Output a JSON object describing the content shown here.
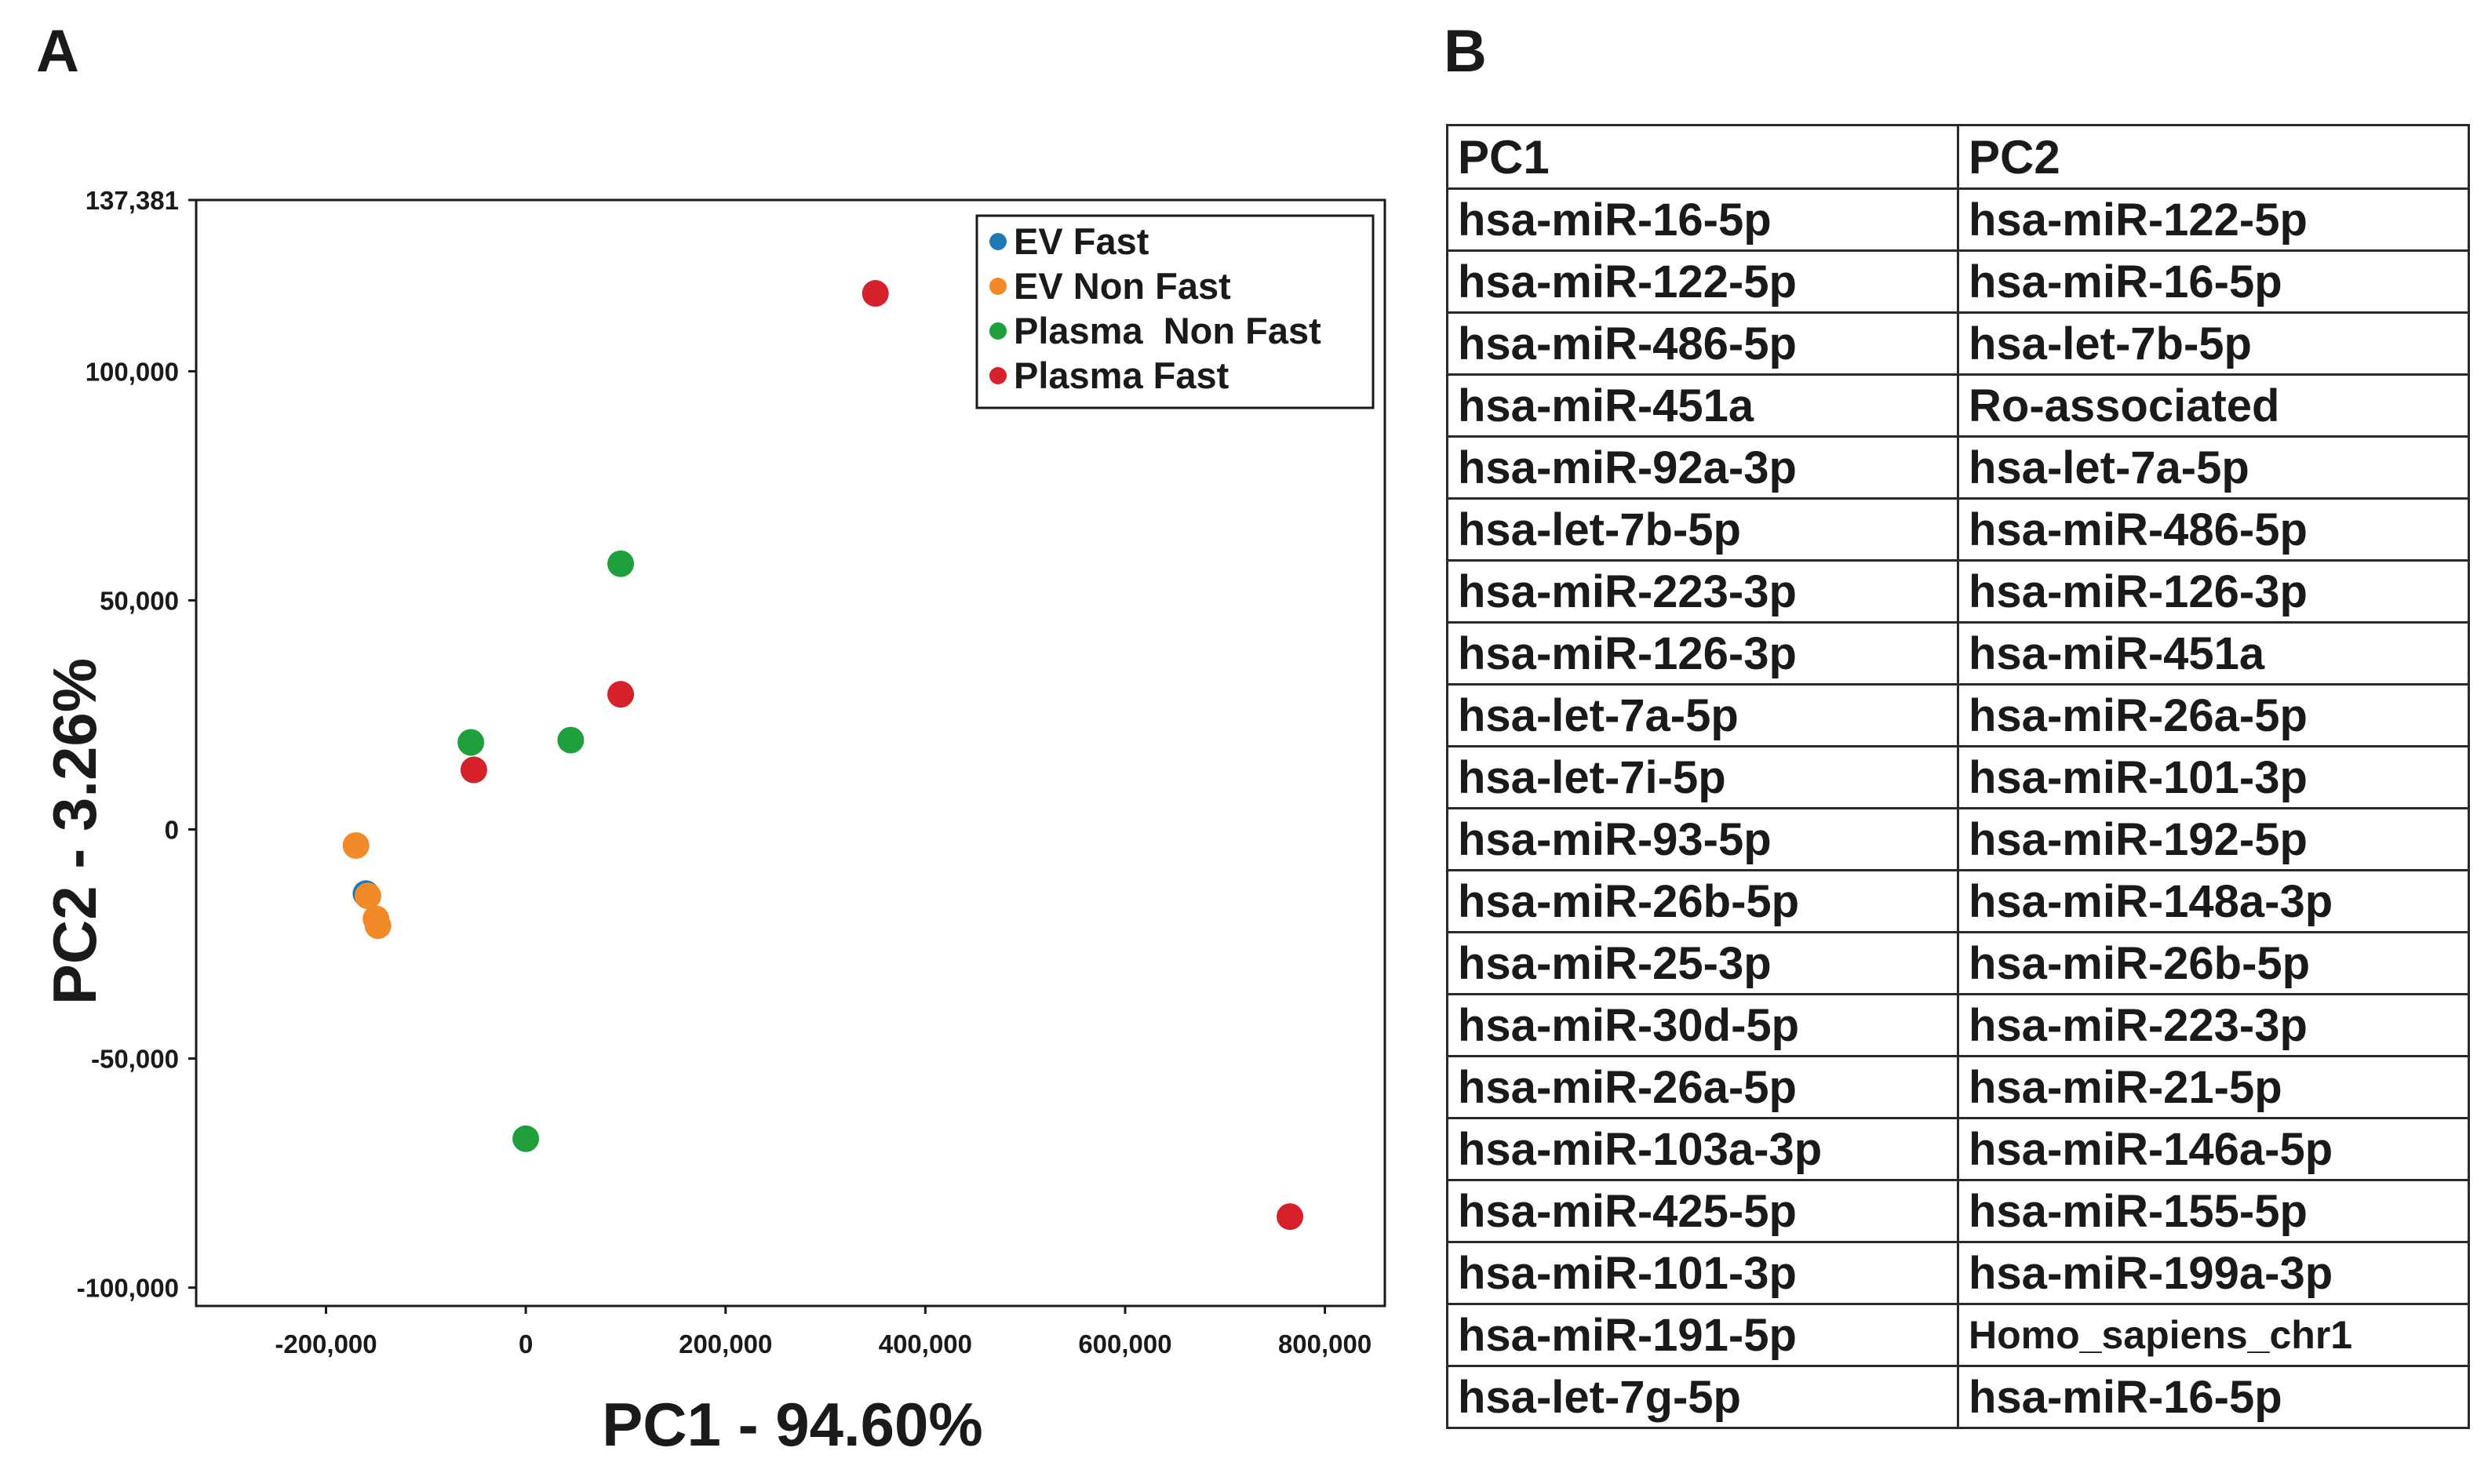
{
  "panels": {
    "a": "A",
    "b": "B"
  },
  "chart_data": {
    "type": "scatter",
    "title": "",
    "xlabel": "PC1 - 94.60%",
    "ylabel": "PC2 - 3.26%",
    "xlim": [
      -330000,
      860000
    ],
    "ylim": [
      -104000,
      137381
    ],
    "xticks": [
      {
        "value": -200000,
        "label": "-200,000"
      },
      {
        "value": 0,
        "label": "0"
      },
      {
        "value": 200000,
        "label": "200,000"
      },
      {
        "value": 400000,
        "label": "400,000"
      },
      {
        "value": 600000,
        "label": "600,000"
      },
      {
        "value": 800000,
        "label": "800,000"
      }
    ],
    "yticks": [
      {
        "value": 137381,
        "label": "137,381"
      },
      {
        "value": 100000,
        "label": "100,000"
      },
      {
        "value": 50000,
        "label": "50,000"
      },
      {
        "value": 0,
        "label": "0"
      },
      {
        "value": -50000,
        "label": "-50,000"
      },
      {
        "value": -100000,
        "label": "-100,000"
      }
    ],
    "legend_position": "top-right",
    "series": [
      {
        "name": "EV Fast",
        "color": "#1f77b4",
        "points": [
          [
            -160000,
            -14000
          ]
        ]
      },
      {
        "name": "EV Non Fast",
        "color": "#f28a2a",
        "points": [
          [
            -170000,
            -3500
          ],
          [
            -158000,
            -14500
          ],
          [
            -150000,
            -19500
          ],
          [
            -148000,
            -21000
          ]
        ]
      },
      {
        "name": "Plasma  Non Fast",
        "color": "#1fa03c",
        "points": [
          [
            -55000,
            19000
          ],
          [
            45000,
            19500
          ],
          [
            95000,
            58000
          ],
          [
            0,
            -67500
          ]
        ]
      },
      {
        "name": "Plasma Fast",
        "color": "#d6202a",
        "points": [
          [
            350000,
            117000
          ],
          [
            95000,
            29500
          ],
          [
            -52000,
            13000
          ],
          [
            765000,
            -84500
          ]
        ]
      }
    ]
  },
  "table": {
    "headers": [
      "PC1",
      "PC2"
    ],
    "rows": [
      [
        "hsa-miR-16-5p",
        "hsa-miR-122-5p"
      ],
      [
        "hsa-miR-122-5p",
        "hsa-miR-16-5p"
      ],
      [
        "hsa-miR-486-5p",
        "hsa-let-7b-5p"
      ],
      [
        "hsa-miR-451a",
        "Ro-associated"
      ],
      [
        "hsa-miR-92a-3p",
        "hsa-let-7a-5p"
      ],
      [
        "hsa-let-7b-5p",
        "hsa-miR-486-5p"
      ],
      [
        "hsa-miR-223-3p",
        "hsa-miR-126-3p"
      ],
      [
        "hsa-miR-126-3p",
        "hsa-miR-451a"
      ],
      [
        "hsa-let-7a-5p",
        "hsa-miR-26a-5p"
      ],
      [
        "hsa-let-7i-5p",
        "hsa-miR-101-3p"
      ],
      [
        "hsa-miR-93-5p",
        "hsa-miR-192-5p"
      ],
      [
        "hsa-miR-26b-5p",
        "hsa-miR-148a-3p"
      ],
      [
        "hsa-miR-25-3p",
        "hsa-miR-26b-5p"
      ],
      [
        "hsa-miR-30d-5p",
        "hsa-miR-223-3p"
      ],
      [
        "hsa-miR-26a-5p",
        "hsa-miR-21-5p"
      ],
      [
        "hsa-miR-103a-3p",
        "hsa-miR-146a-5p"
      ],
      [
        "hsa-miR-425-5p",
        "hsa-miR-155-5p"
      ],
      [
        "hsa-miR-101-3p",
        "hsa-miR-199a-3p"
      ],
      [
        "hsa-miR-191-5p",
        "Homo_sapiens_chr1"
      ],
      [
        "hsa-let-7g-5p",
        "hsa-miR-16-5p"
      ]
    ]
  }
}
